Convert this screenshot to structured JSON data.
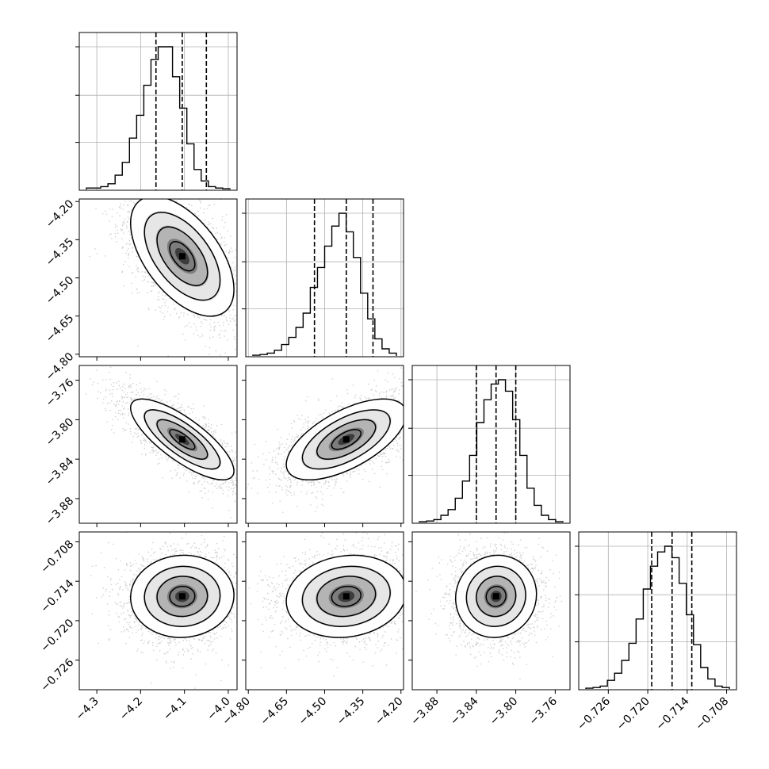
{
  "chart_data": {
    "type": "corner",
    "grid": true,
    "parameters": [
      {
        "ticks": [
          -4.3,
          -4.2,
          -4.1,
          -4.0
        ],
        "tick_labels": [
          "−4.3",
          "−4.2",
          "−4.1",
          "−4.0"
        ],
        "range": [
          -4.34,
          -3.98
        ],
        "median": -4.105,
        "quantiles": [
          -4.165,
          -4.105,
          -4.05
        ]
      },
      {
        "ticks": [
          -4.8,
          -4.65,
          -4.5,
          -4.35,
          -4.2
        ],
        "tick_labels": [
          "−4.80",
          "−4.65",
          "−4.50",
          "−4.35",
          "−4.20"
        ],
        "range": [
          -4.81,
          -4.19
        ],
        "median": -4.415,
        "quantiles": [
          -4.54,
          -4.415,
          -4.31
        ]
      },
      {
        "ticks": [
          -3.88,
          -3.84,
          -3.8,
          -3.76
        ],
        "tick_labels": [
          "−3.88",
          "−3.84",
          "−3.80",
          "−3.76"
        ],
        "range": [
          -3.905,
          -3.745
        ],
        "median": -3.82,
        "quantiles": [
          -3.84,
          -3.82,
          -3.8
        ]
      },
      {
        "ticks": [
          -0.726,
          -0.72,
          -0.714,
          -0.708
        ],
        "tick_labels": [
          "−0.726",
          "−0.720",
          "−0.714",
          "−0.708"
        ],
        "range": [
          -0.7305,
          -0.7065
        ],
        "median": -0.7163,
        "quantiles": [
          -0.7194,
          -0.7163,
          -0.7133
        ]
      }
    ],
    "histograms": [
      [
        0.01,
        0.01,
        0.02,
        0.04,
        0.1,
        0.19,
        0.36,
        0.52,
        0.73,
        0.91,
        1.0,
        1.0,
        0.79,
        0.57,
        0.32,
        0.14,
        0.06,
        0.02,
        0.01,
        0.005
      ],
      [
        0.005,
        0.01,
        0.02,
        0.04,
        0.08,
        0.13,
        0.2,
        0.3,
        0.48,
        0.62,
        0.77,
        0.91,
        1.0,
        0.87,
        0.69,
        0.44,
        0.26,
        0.12,
        0.05,
        0.02
      ],
      [
        0.005,
        0.01,
        0.02,
        0.05,
        0.09,
        0.17,
        0.29,
        0.47,
        0.7,
        0.86,
        0.97,
        1.0,
        0.92,
        0.72,
        0.47,
        0.24,
        0.12,
        0.05,
        0.02,
        0.005
      ],
      [
        0.005,
        0.01,
        0.02,
        0.06,
        0.11,
        0.2,
        0.32,
        0.49,
        0.7,
        0.86,
        0.96,
        1.0,
        0.92,
        0.74,
        0.52,
        0.31,
        0.15,
        0.07,
        0.02,
        0.01
      ]
    ],
    "correlations": {
      "1-0": -0.55,
      "2-0": -0.78,
      "2-1": 0.62,
      "3-0": 0.03,
      "3-1": 0.12,
      "3-2": 0.05
    },
    "contour_levels_sigma": [
      0.5,
      1.0,
      1.5,
      2.0
    ],
    "colors": {
      "points": "#9a9a9a",
      "contour": "#000000",
      "grid": "#b0b0b0",
      "axes": "#000000"
    }
  }
}
